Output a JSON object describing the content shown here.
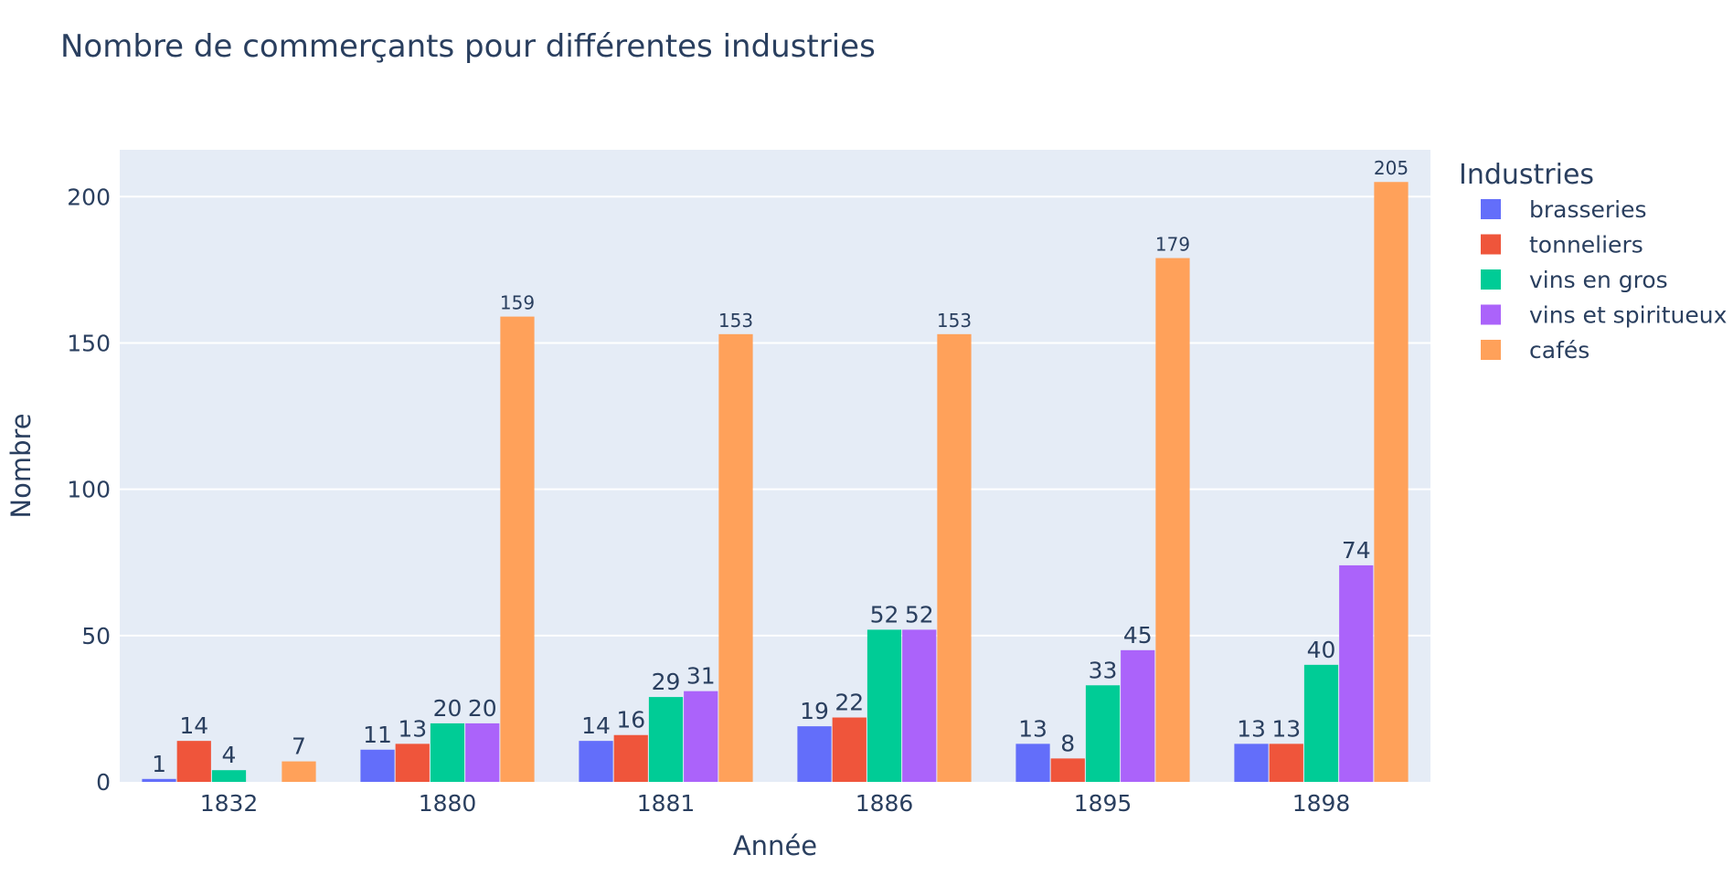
{
  "chart_data": {
    "type": "bar",
    "title": "Nombre de commerçants pour différentes industries",
    "xlabel": "Année",
    "ylabel": "Nombre",
    "categories": [
      "1832",
      "1880",
      "1881",
      "1886",
      "1895",
      "1898"
    ],
    "ylim": [
      0,
      216
    ],
    "yticks": [
      0,
      50,
      100,
      150,
      200
    ],
    "grid": true,
    "legend_title": "Industries",
    "legend_position": "right",
    "series": [
      {
        "name": "brasseries",
        "color": "#636efa",
        "values": [
          1,
          11,
          14,
          19,
          13,
          13
        ]
      },
      {
        "name": "tonneliers",
        "color": "#ef553b",
        "values": [
          14,
          13,
          16,
          22,
          8,
          13
        ]
      },
      {
        "name": "vins en gros",
        "color": "#00cc96",
        "values": [
          4,
          20,
          29,
          52,
          33,
          40
        ]
      },
      {
        "name": "vins et spiritueux",
        "color": "#ab63fa",
        "values": [
          null,
          20,
          31,
          52,
          45,
          74
        ]
      },
      {
        "name": "cafés",
        "color": "#ffa15a",
        "values": [
          7,
          159,
          153,
          153,
          179,
          205
        ]
      }
    ],
    "colors": {
      "plot_background": "#e5ecf6",
      "grid": "#ffffff",
      "text": "#2a3f5f"
    }
  }
}
